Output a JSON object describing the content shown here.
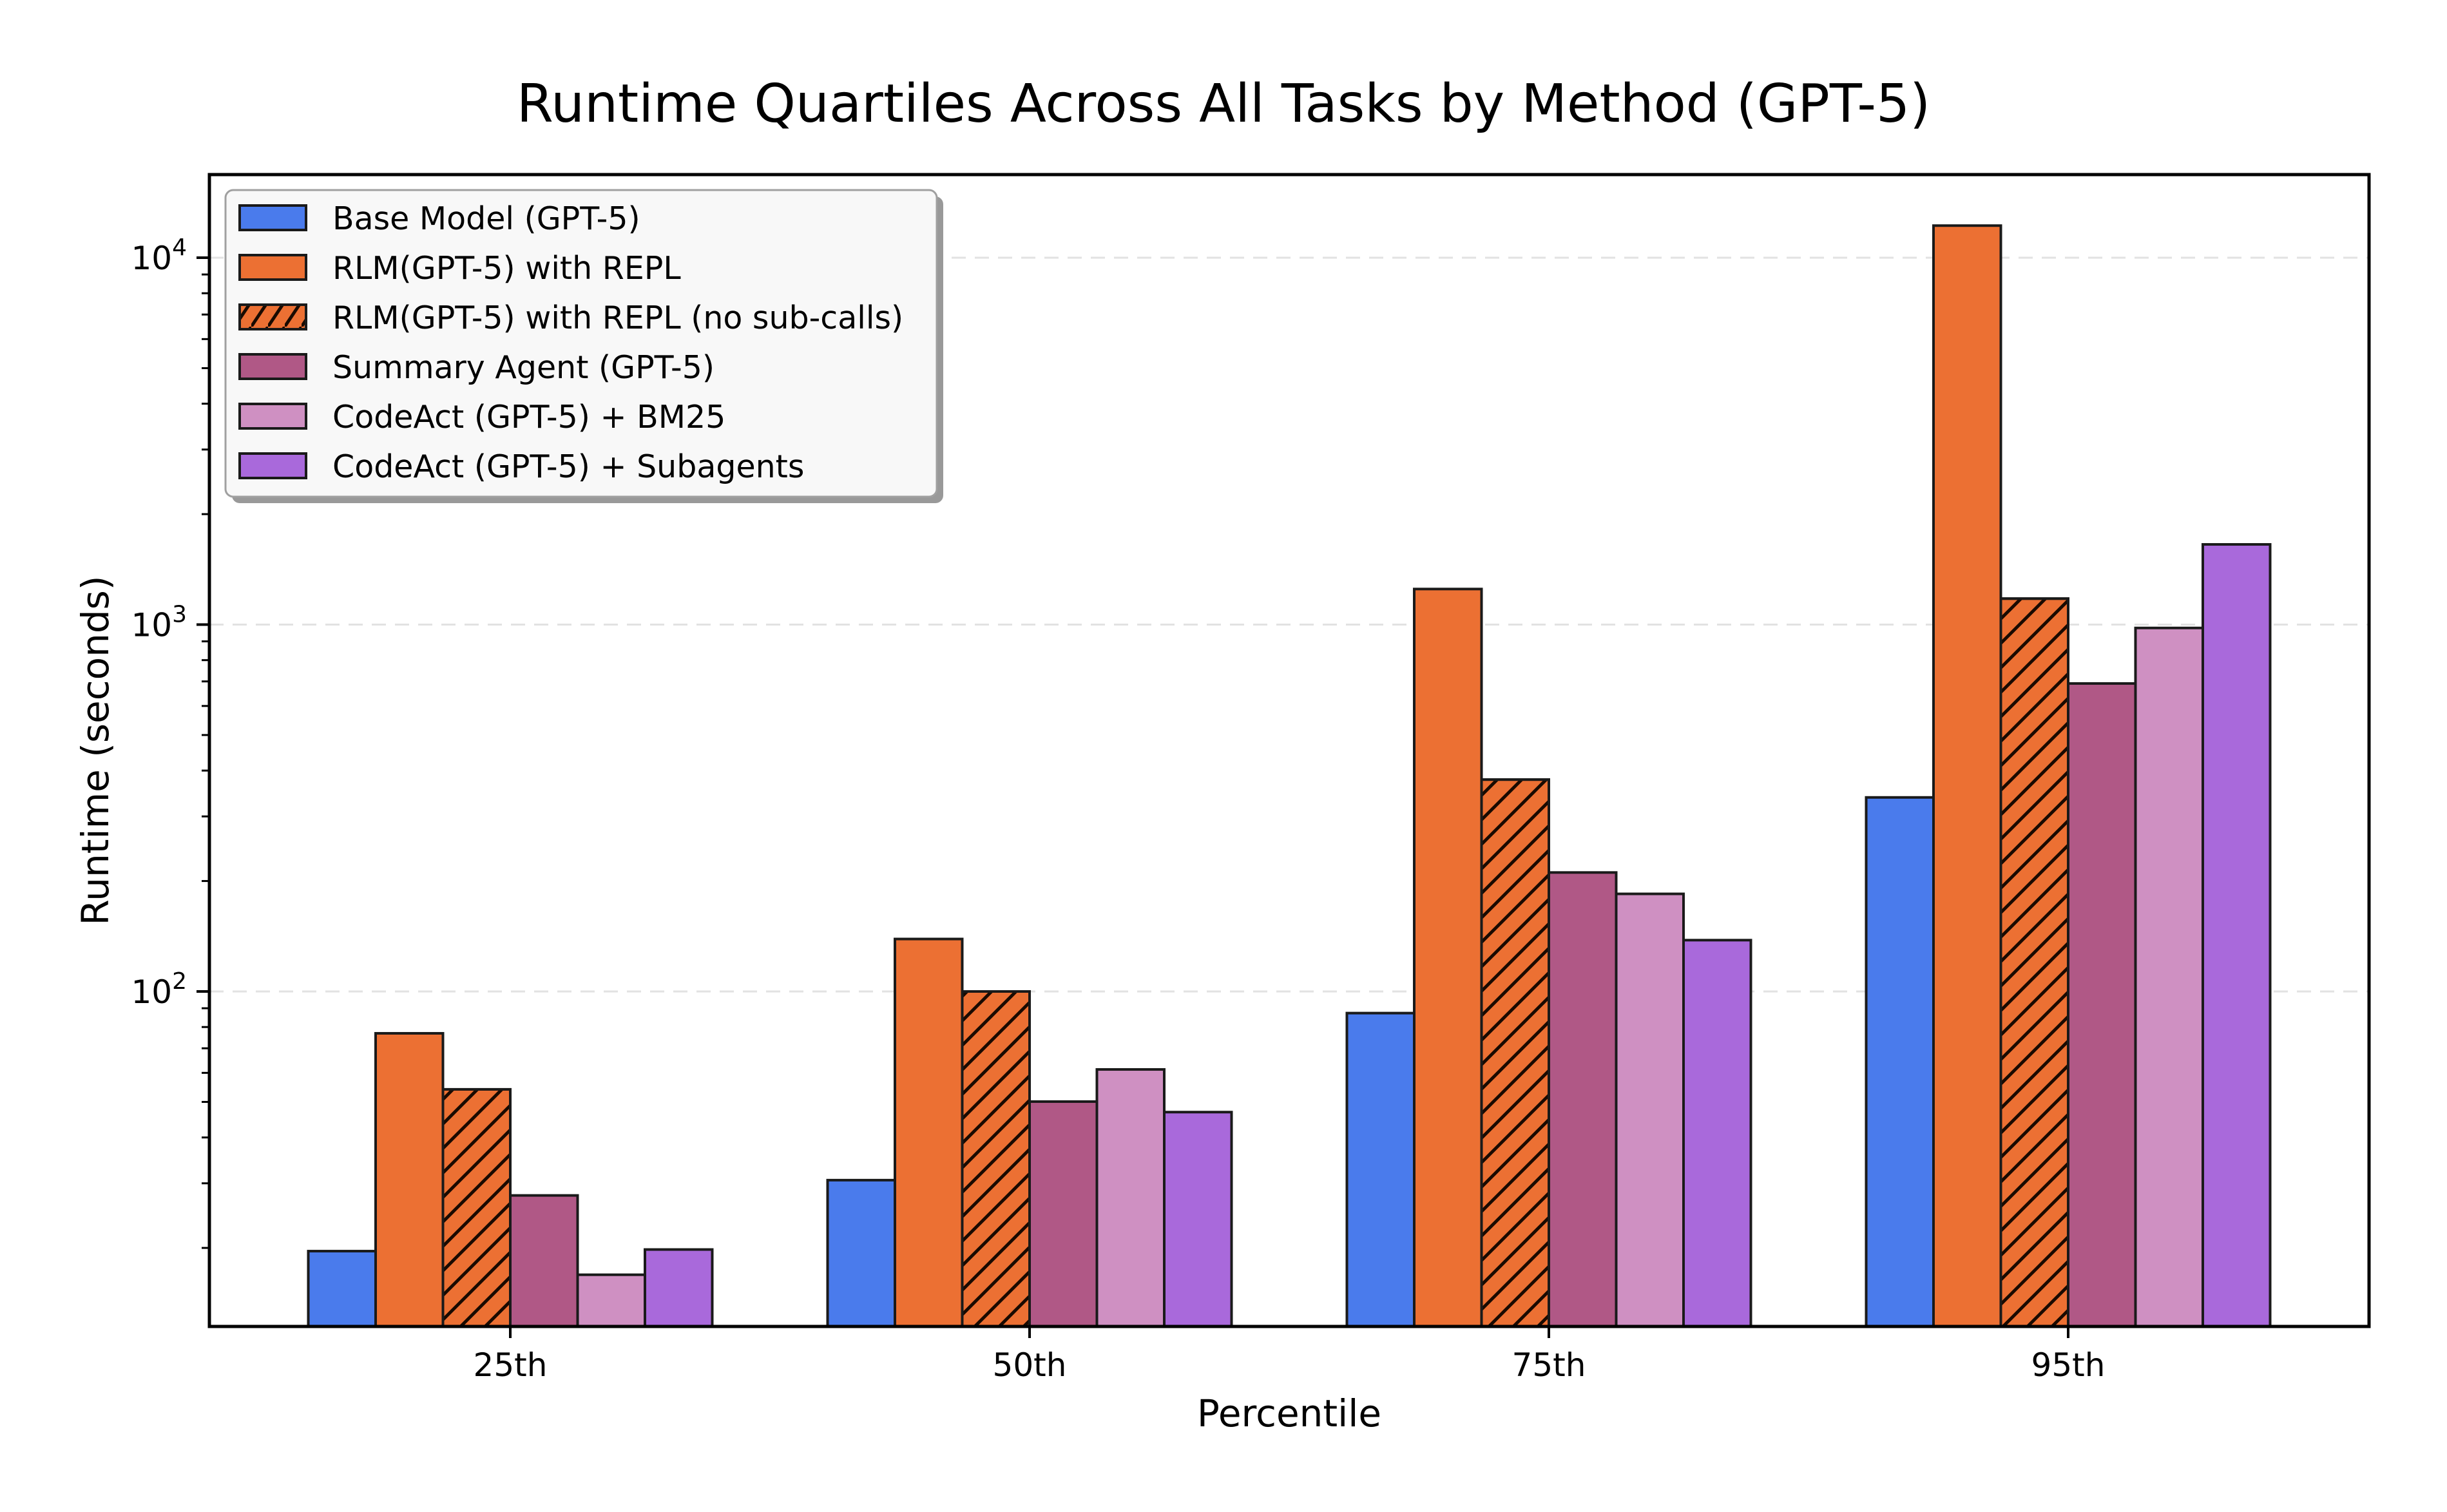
{
  "figure": {
    "title": "Runtime Quartiles Across All Tasks by Method (GPT-5)",
    "xlabel": "Percentile",
    "ylabel": "Runtime (seconds)"
  },
  "axes": {
    "yticks": [
      {
        "base": "10",
        "exp": "2",
        "value": 100
      },
      {
        "base": "10",
        "exp": "3",
        "value": 1000
      },
      {
        "base": "10",
        "exp": "4",
        "value": 10000
      }
    ],
    "xticks": [
      "25th",
      "50th",
      "75th",
      "95th"
    ]
  },
  "legend": {
    "items": [
      {
        "label": "Base Model (GPT-5)",
        "color": "#4a7bec",
        "hatch": false
      },
      {
        "label": "RLM(GPT-5) with REPL",
        "color": "#ec7033",
        "hatch": false
      },
      {
        "label": "RLM(GPT-5) with REPL (no sub-calls)",
        "color": "#ec7033",
        "hatch": true
      },
      {
        "label": "Summary Agent (GPT-5)",
        "color": "#b05886",
        "hatch": false
      },
      {
        "label": "CodeAct (GPT-5) + BM25",
        "color": "#cf90c2",
        "hatch": false
      },
      {
        "label": "CodeAct (GPT-5) + Subagents",
        "color": "#a969db",
        "hatch": false
      }
    ]
  },
  "chart_data": {
    "type": "bar",
    "title": "Runtime Quartiles Across All Tasks by Method (GPT-5)",
    "xlabel": "Percentile",
    "ylabel": "Runtime (seconds)",
    "yscale": "log",
    "ylim": [
      12.2,
      17000
    ],
    "grid": {
      "y": true,
      "style": "dashed",
      "color": "#e0e0e0"
    },
    "legend_position": "upper left",
    "categories": [
      "25th",
      "50th",
      "75th",
      "95th"
    ],
    "series": [
      {
        "name": "Base Model (GPT-5)",
        "color": "#4a7bec",
        "hatch": false,
        "values": [
          19.6,
          30.6,
          87.3,
          338
        ]
      },
      {
        "name": "RLM(GPT-5) with REPL",
        "color": "#ec7033",
        "hatch": false,
        "values": [
          76.9,
          139,
          1250,
          12230
        ]
      },
      {
        "name": "RLM(GPT-5) with REPL (no sub-calls)",
        "color": "#ec7033",
        "hatch": true,
        "values": [
          54.1,
          100,
          378,
          1177
        ]
      },
      {
        "name": "Summary Agent (GPT-5)",
        "color": "#b05886",
        "hatch": false,
        "values": [
          27.8,
          50.1,
          211,
          691
        ]
      },
      {
        "name": "CodeAct (GPT-5) + BM25",
        "color": "#cf90c2",
        "hatch": false,
        "values": [
          16.9,
          61.3,
          184.5,
          979
        ]
      },
      {
        "name": "CodeAct (GPT-5) + Subagents",
        "color": "#a969db",
        "hatch": false,
        "values": [
          19.8,
          46.9,
          138,
          1654
        ]
      }
    ]
  }
}
